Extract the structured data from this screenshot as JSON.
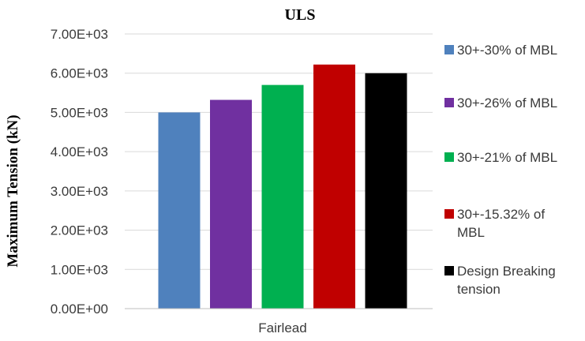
{
  "chart_data": {
    "type": "bar",
    "title": "ULS",
    "ylabel": "Maximum Tension (kN)",
    "xlabel": "",
    "categories": [
      "Fairlead"
    ],
    "ylim": [
      0,
      7000
    ],
    "yticks": [
      0,
      1000,
      2000,
      3000,
      4000,
      5000,
      6000,
      7000
    ],
    "ytick_labels": [
      "0.00E+00",
      "1.00E+03",
      "2.00E+03",
      "3.00E+03",
      "4.00E+03",
      "5.00E+03",
      "6.00E+03",
      "7.00E+03"
    ],
    "grid": true,
    "legend_position": "right",
    "series": [
      {
        "name": "30+-30% of MBL",
        "legend_lines": [
          "30+-30% of MBL"
        ],
        "color": "#4f81bd",
        "values": [
          5000
        ]
      },
      {
        "name": "30+-26% of MBL",
        "legend_lines": [
          "30+-26% of MBL"
        ],
        "color": "#7030a0",
        "values": [
          5320
        ]
      },
      {
        "name": "30+-21% of MBL",
        "legend_lines": [
          "30+-21% of MBL"
        ],
        "color": "#00b050",
        "values": [
          5700
        ]
      },
      {
        "name": "30+-15.32% of MBL",
        "legend_lines": [
          "30+-15.32% of",
          "MBL"
        ],
        "color": "#c00000",
        "values": [
          6220
        ]
      },
      {
        "name": "Design Breaking tension",
        "legend_lines": [
          "Design Breaking",
          "tension"
        ],
        "color": "#000000",
        "values": [
          6000
        ]
      }
    ]
  }
}
